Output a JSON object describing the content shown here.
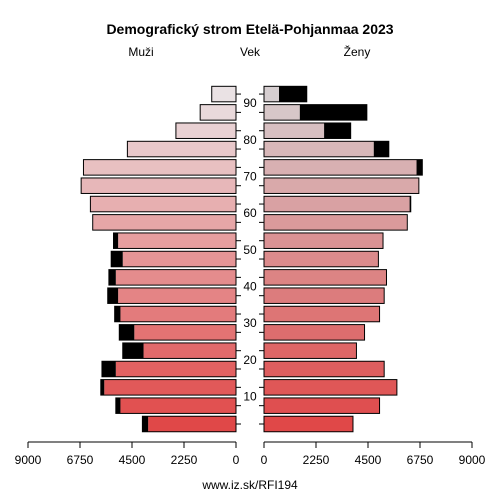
{
  "chart_data": {
    "type": "bar",
    "title": "Demografický strom Etelä-Pohjanmaa 2023",
    "left_label": "Muži",
    "center_label": "Vek",
    "right_label": "Ženy",
    "footer": "www.iz.sk/RFI194",
    "age_groups": [
      "0-4",
      "5-9",
      "10-14",
      "15-19",
      "20-24",
      "25-29",
      "30-34",
      "35-39",
      "40-44",
      "45-49",
      "50-54",
      "55-59",
      "60-64",
      "65-69",
      "70-74",
      "75-79",
      "80-84",
      "85-89",
      "90-94"
    ],
    "age_ticks": [
      10,
      20,
      30,
      40,
      50,
      60,
      70,
      80,
      90
    ],
    "x_ticks_left": [
      "9000",
      "6750",
      "4500",
      "2250",
      "0"
    ],
    "x_ticks_right": [
      "0",
      "2250",
      "4500",
      "6750",
      "9000"
    ],
    "xlim": [
      0,
      9000
    ],
    "series": [
      {
        "values_base": [
          3800,
          5000,
          5700,
          5200,
          4000,
          4400,
          5000,
          5100,
          5200,
          4900,
          5100,
          6200,
          6300,
          6700,
          6600,
          4700,
          2600,
          1550,
          1050
        ],
        "values_extra": [
          250,
          200,
          150,
          600,
          900,
          650,
          250,
          450,
          300,
          500,
          200,
          0,
          0,
          0,
          0,
          0,
          0,
          0,
          0
        ]
      },
      {
        "values_base": [
          3850,
          5000,
          5750,
          5200,
          4000,
          4350,
          5000,
          5200,
          5300,
          4950,
          5150,
          6200,
          6300,
          6700,
          6600,
          4750,
          2600,
          1550,
          650
        ],
        "values_extra": [
          0,
          0,
          0,
          0,
          0,
          0,
          0,
          0,
          0,
          0,
          0,
          0,
          50,
          0,
          250,
          650,
          1150,
          2900,
          1200
        ]
      }
    ]
  }
}
